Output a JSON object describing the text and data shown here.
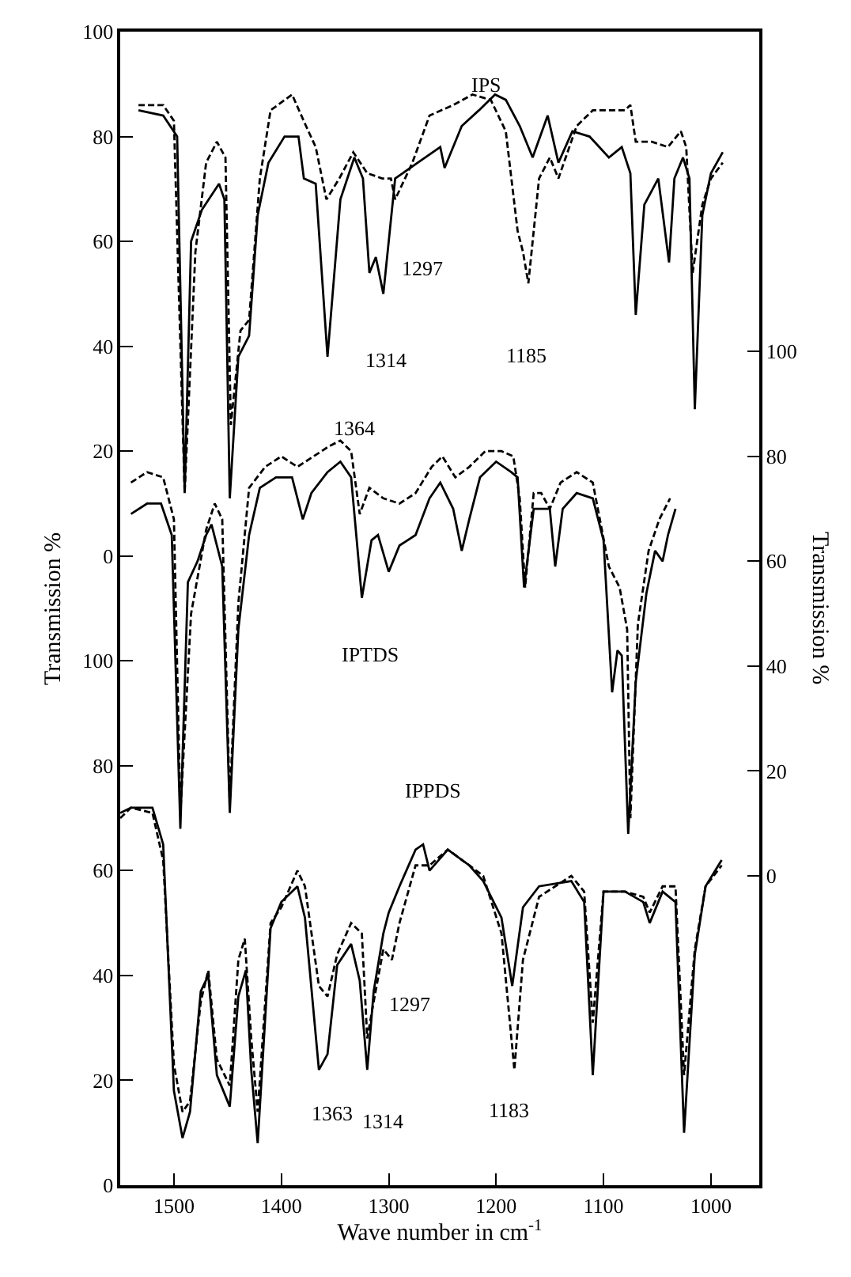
{
  "chart_data": {
    "type": "line",
    "xlabel": "Wave number in cm$^{-1}$",
    "ylabel": "Transmission %",
    "y2label": "Transmission %",
    "xlim": [
      1550,
      955
    ],
    "xticks": [
      1500,
      1400,
      1300,
      1200,
      1100,
      1000
    ],
    "ylim": [
      -120,
      100
    ],
    "yticks": [
      0,
      20,
      40,
      60,
      80,
      100
    ],
    "y2lim": [
      -59,
      161
    ],
    "y2ticks": [
      0,
      20,
      40,
      60,
      80,
      100
    ],
    "y3lim": [
      0,
      220
    ],
    "y3ticks": [
      0,
      20,
      40,
      60,
      80,
      100
    ],
    "marker": "none",
    "series": [
      {
        "axis": "y",
        "color": "#000000",
        "line_style": "solid",
        "x": [
          1533,
          1510,
          1497,
          1490,
          1484,
          1474,
          1458,
          1453,
          1448,
          1440,
          1430,
          1422,
          1412,
          1397,
          1384,
          1379,
          1368,
          1357,
          1345,
          1332,
          1324,
          1318,
          1312,
          1305,
          1294,
          1273,
          1252,
          1248,
          1232,
          1216,
          1201,
          1191,
          1178,
          1166,
          1152,
          1142,
          1129,
          1113,
          1095,
          1083,
          1075,
          1070,
          1062,
          1049,
          1039,
          1034,
          1026,
          1020,
          1015,
          1008,
          1000,
          989
        ],
        "values": [
          85,
          84,
          80,
          12,
          60,
          66,
          71,
          68,
          11,
          38,
          42,
          65,
          75,
          80,
          80,
          72,
          71,
          38,
          68,
          76,
          72,
          54,
          57,
          50,
          72,
          75,
          78,
          74,
          82,
          85,
          88,
          87,
          82,
          76,
          84,
          75,
          81,
          80,
          76,
          78,
          73,
          46,
          67,
          72,
          56,
          72,
          76,
          72,
          28,
          65,
          73,
          77
        ]
      },
      {
        "axis": "y",
        "color": "#000000",
        "line_style": "dashed",
        "x": [
          1533,
          1510,
          1500,
          1490,
          1480,
          1470,
          1460,
          1452,
          1447,
          1438,
          1430,
          1420,
          1410,
          1390,
          1377,
          1368,
          1358,
          1346,
          1333,
          1320,
          1306,
          1298,
          1294,
          1278,
          1262,
          1240,
          1222,
          1205,
          1191,
          1180,
          1175,
          1170,
          1160,
          1150,
          1142,
          1125,
          1110,
          1080,
          1075,
          1070,
          1055,
          1040,
          1028,
          1023,
          1017,
          1008,
          1000,
          989
        ],
        "values": [
          86,
          86,
          83,
          12,
          58,
          75,
          79,
          76,
          25,
          43,
          45,
          72,
          85,
          88,
          82,
          78,
          68,
          72,
          77,
          73,
          72,
          72,
          68,
          75,
          84,
          86,
          88,
          87,
          81,
          62,
          58,
          52,
          72,
          76,
          72,
          82,
          85,
          85,
          86,
          79,
          79,
          78,
          81,
          78,
          54,
          67,
          72,
          75
        ]
      },
      {
        "axis": "y2",
        "color": "#000000",
        "line_style": "solid",
        "x": [
          1540,
          1525,
          1512,
          1502,
          1494,
          1487,
          1478,
          1470,
          1465,
          1455,
          1448,
          1440,
          1430,
          1420,
          1405,
          1390,
          1380,
          1372,
          1357,
          1345,
          1335,
          1325,
          1316,
          1310,
          1300,
          1290,
          1275,
          1262,
          1252,
          1240,
          1232,
          1225,
          1215,
          1200,
          1186,
          1180,
          1174,
          1165,
          1150,
          1145,
          1138,
          1125,
          1110,
          1100,
          1092,
          1087,
          1083,
          1077,
          1070,
          1060,
          1052,
          1045,
          1040,
          1033
        ],
        "values": [
          69,
          71,
          71,
          65,
          9,
          56,
          60,
          65,
          67,
          59,
          12,
          47,
          65,
          74,
          76,
          76,
          68,
          73,
          77,
          79,
          76,
          53,
          64,
          65,
          58,
          63,
          65,
          72,
          75,
          70,
          62,
          68,
          76,
          79,
          77,
          76,
          55,
          70,
          70,
          59,
          70,
          73,
          72,
          64,
          35,
          43,
          42,
          8,
          37,
          54,
          62,
          60,
          65,
          70
        ]
      },
      {
        "axis": "y2",
        "color": "#000000",
        "line_style": "dashed",
        "x": [
          1540,
          1525,
          1510,
          1500,
          1494,
          1484,
          1470,
          1462,
          1455,
          1448,
          1440,
          1430,
          1415,
          1400,
          1385,
          1370,
          1355,
          1345,
          1335,
          1327,
          1318,
          1305,
          1290,
          1275,
          1260,
          1250,
          1238,
          1225,
          1210,
          1195,
          1184,
          1178,
          1173,
          1165,
          1158,
          1150,
          1140,
          1125,
          1110,
          1095,
          1085,
          1078,
          1075,
          1068,
          1058,
          1048,
          1038
        ],
        "values": [
          75,
          77,
          76,
          68,
          12,
          50,
          66,
          71,
          68,
          14,
          52,
          74,
          78,
          80,
          78,
          80,
          82,
          83,
          81,
          69,
          74,
          72,
          71,
          73,
          78,
          80,
          76,
          78,
          81,
          81,
          80,
          72,
          55,
          73,
          73,
          70,
          75,
          77,
          75,
          59,
          55,
          47,
          11,
          48,
          62,
          68,
          72
        ]
      },
      {
        "axis": "y3",
        "color": "#000000",
        "line_style": "solid",
        "x": [
          1550,
          1540,
          1520,
          1510,
          1500,
          1492,
          1485,
          1475,
          1468,
          1460,
          1448,
          1440,
          1433,
          1428,
          1422,
          1410,
          1400,
          1385,
          1378,
          1365,
          1357,
          1348,
          1335,
          1327,
          1320,
          1314,
          1305,
          1300,
          1290,
          1275,
          1268,
          1262,
          1245,
          1225,
          1212,
          1195,
          1185,
          1175,
          1160,
          1130,
          1118,
          1110,
          1100,
          1080,
          1063,
          1057,
          1045,
          1033,
          1025,
          1015,
          1005,
          990
        ],
        "values": [
          71,
          72,
          72,
          65,
          18,
          9,
          14,
          37,
          40,
          21,
          15,
          36,
          41,
          22,
          8,
          49,
          54,
          57,
          51,
          22,
          25,
          42,
          46,
          39,
          22,
          37,
          48,
          52,
          57,
          64,
          65,
          60,
          64,
          61,
          58,
          51,
          38,
          53,
          57,
          58,
          54,
          21,
          56,
          56,
          54,
          50,
          56,
          54,
          10,
          44,
          57,
          62
        ]
      },
      {
        "axis": "y3",
        "color": "#000000",
        "line_style": "dashed",
        "x": [
          1550,
          1540,
          1520,
          1510,
          1500,
          1492,
          1485,
          1475,
          1468,
          1460,
          1448,
          1440,
          1434,
          1428,
          1422,
          1410,
          1400,
          1385,
          1378,
          1365,
          1357,
          1348,
          1335,
          1325,
          1320,
          1314,
          1305,
          1297,
          1290,
          1275,
          1262,
          1245,
          1225,
          1212,
          1195,
          1183,
          1175,
          1160,
          1130,
          1118,
          1110,
          1100,
          1080,
          1063,
          1057,
          1045,
          1033,
          1025,
          1015,
          1005,
          990
        ],
        "values": [
          70,
          72,
          71,
          62,
          23,
          14,
          16,
          35,
          41,
          24,
          19,
          43,
          47,
          28,
          14,
          50,
          53,
          60,
          57,
          38,
          36,
          44,
          50,
          48,
          28,
          35,
          45,
          43,
          50,
          61,
          61,
          64,
          61,
          59,
          48,
          22,
          43,
          55,
          59,
          56,
          31,
          56,
          56,
          55,
          52,
          57,
          57,
          21,
          45,
          57,
          61
        ]
      }
    ],
    "annotations": [
      "IPS",
      "1364",
      "1314",
      "1297",
      "1185",
      "IPTDS",
      "IPPDS",
      "1363",
      "1314",
      "1297",
      "1183"
    ]
  }
}
